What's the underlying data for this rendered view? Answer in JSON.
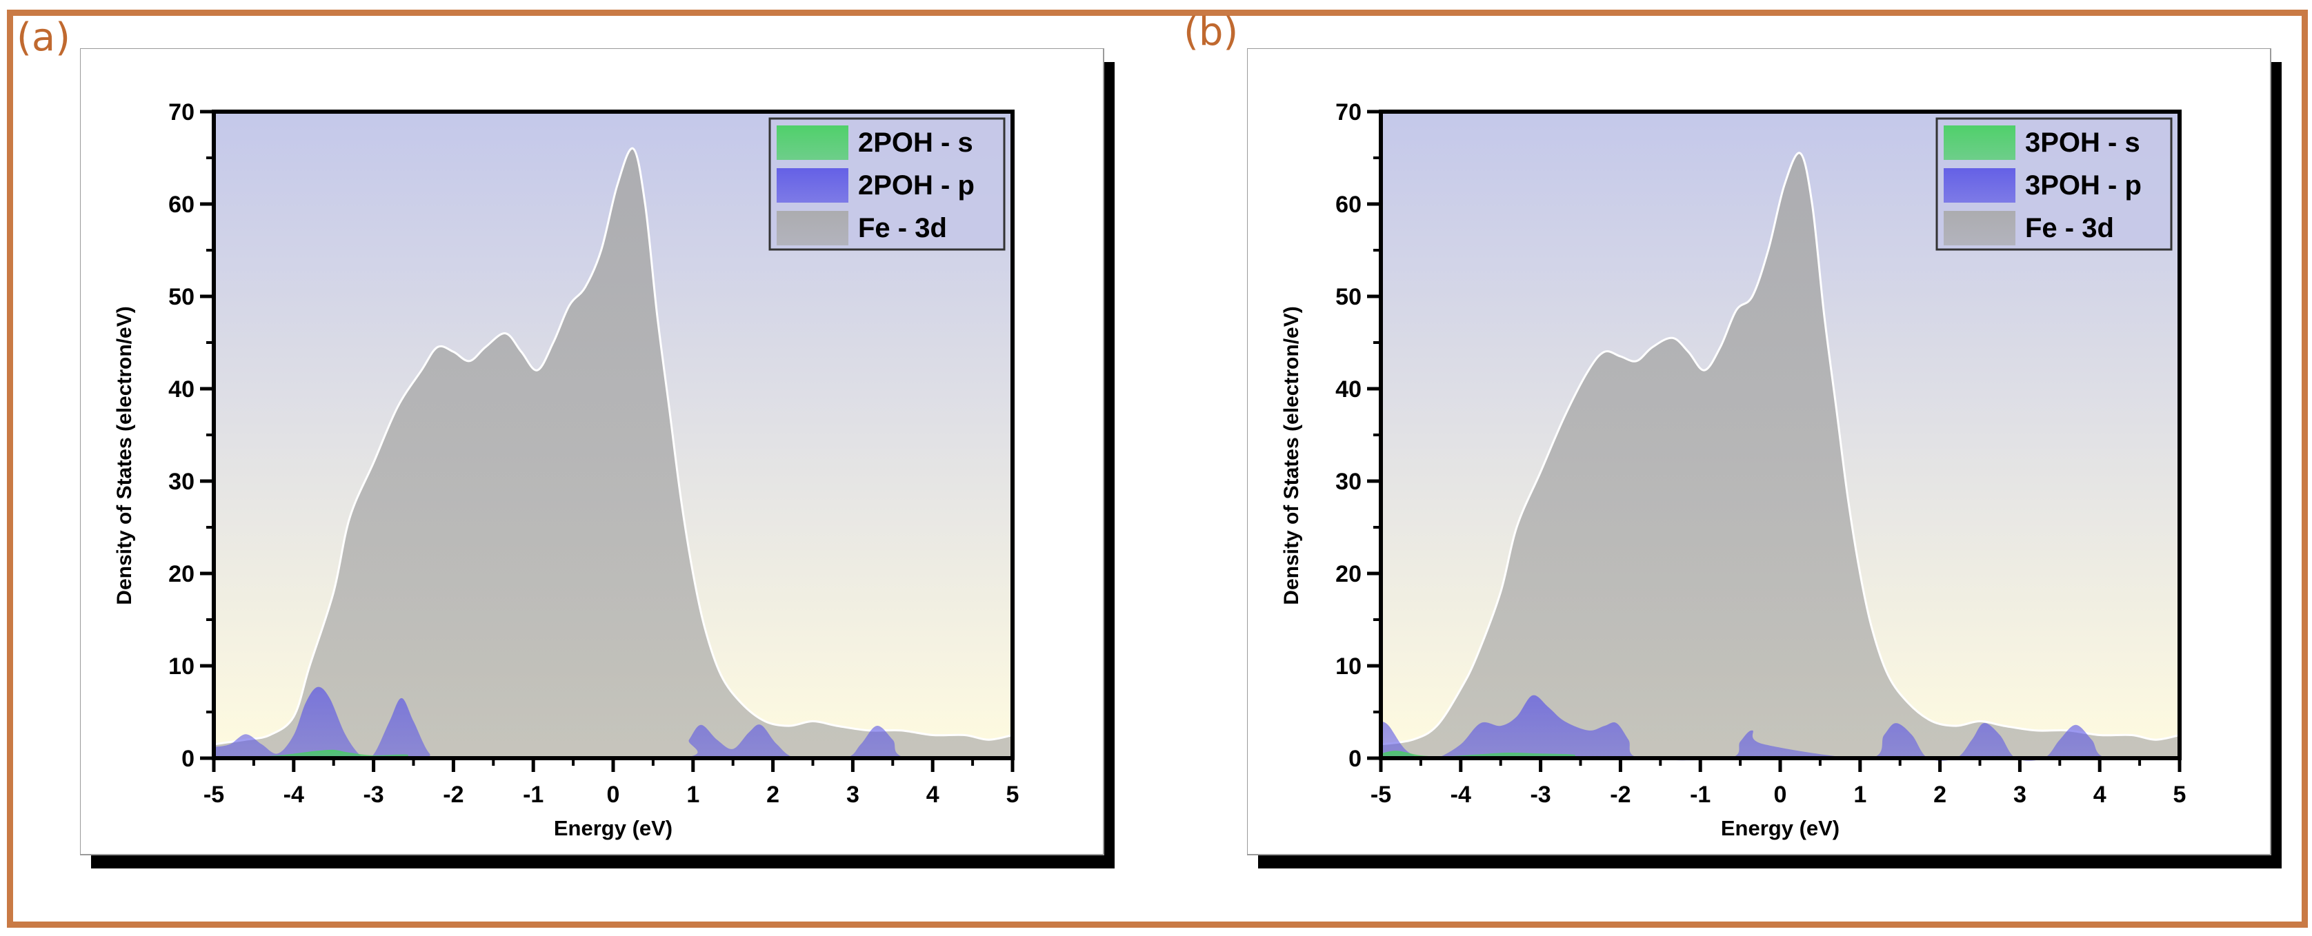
{
  "colors": {
    "frame": "#c97a45",
    "panel_letter": "#c0692f",
    "s_fill": "#43d15d",
    "p_fill": "#5a55e6",
    "d_fill": "#a9a9a9",
    "bg_top": "#c4c8ea",
    "bg_bottom": "#fffbe0"
  },
  "chart_data": [
    {
      "type": "area",
      "panel_label": "(a)",
      "title": "",
      "xlabel": "Energy (eV)",
      "ylabel": "Density of States (electron/eV)",
      "xlim": [
        -5,
        5
      ],
      "ylim": [
        0,
        70
      ],
      "xticks": [
        "-5",
        "-4",
        "-3",
        "-2",
        "-1",
        "0",
        "1",
        "2",
        "3",
        "4",
        "5"
      ],
      "yticks": [
        "0",
        "10",
        "20",
        "30",
        "40",
        "50",
        "60",
        "70"
      ],
      "legend_position": "top-right",
      "series": [
        {
          "name": "2POH - s",
          "x": [
            -5,
            -4.6,
            -4.2,
            -3.9,
            -3.7,
            -3.5,
            -3.3,
            -3.0,
            -2.6,
            -2.3,
            0,
            1,
            2,
            3,
            4,
            5
          ],
          "values": [
            0,
            0.1,
            0.3,
            0.6,
            0.8,
            0.9,
            0.6,
            0.3,
            0.4,
            0.1,
            0,
            0.1,
            0.1,
            0.1,
            0,
            0
          ]
        },
        {
          "name": "2POH - p",
          "x": [
            -5,
            -4.8,
            -4.6,
            -4.4,
            -4.2,
            -4.0,
            -3.85,
            -3.7,
            -3.55,
            -3.35,
            -3.15,
            -3.0,
            -2.8,
            -2.65,
            -2.5,
            -2.3,
            -2.1,
            0.8,
            0.95,
            1.1,
            1.3,
            1.5,
            1.7,
            1.85,
            2.05,
            2.3,
            2.9,
            3.1,
            3.3,
            3.5,
            3.7,
            5
          ],
          "values": [
            1.2,
            1.5,
            2.6,
            1.5,
            0.5,
            2.5,
            6.0,
            7.7,
            6.5,
            2.5,
            0.2,
            0.4,
            4.0,
            6.5,
            4.0,
            0.5,
            0,
            0,
            2.0,
            3.6,
            2.0,
            1.0,
            2.8,
            3.6,
            1.5,
            0,
            0,
            1.5,
            3.5,
            2.0,
            0,
            0
          ]
        },
        {
          "name": "Fe - 3d",
          "x": [
            -5,
            -4.6,
            -4.3,
            -4.0,
            -3.8,
            -3.5,
            -3.3,
            -3.0,
            -2.7,
            -2.4,
            -2.2,
            -2.0,
            -1.8,
            -1.6,
            -1.35,
            -1.15,
            -0.95,
            -0.75,
            -0.55,
            -0.35,
            -0.15,
            0.05,
            0.25,
            0.4,
            0.55,
            0.7,
            0.85,
            1.0,
            1.15,
            1.35,
            1.6,
            1.9,
            2.2,
            2.5,
            2.8,
            3.2,
            3.6,
            4.0,
            4.4,
            4.7,
            5.0
          ],
          "values": [
            1.5,
            2.0,
            2.5,
            4.5,
            10,
            18,
            26,
            32,
            38,
            42,
            44.5,
            44,
            43,
            44.5,
            46,
            44,
            42,
            45,
            49,
            51,
            55,
            62,
            66,
            60,
            48,
            38,
            28,
            20,
            14,
            9,
            6,
            4,
            3.5,
            4,
            3.5,
            3,
            3,
            2.5,
            2.5,
            2,
            2.5
          ]
        }
      ]
    },
    {
      "type": "area",
      "panel_label": "(b)",
      "title": "",
      "xlabel": "Energy (eV)",
      "ylabel": "Density of States (electron/eV)",
      "xlim": [
        -5,
        5
      ],
      "ylim": [
        0,
        70
      ],
      "xticks": [
        "-5",
        "-4",
        "-3",
        "-2",
        "-1",
        "0",
        "1",
        "2",
        "3",
        "4",
        "5"
      ],
      "yticks": [
        "0",
        "10",
        "20",
        "30",
        "40",
        "50",
        "60",
        "70"
      ],
      "legend_position": "top-right",
      "series": [
        {
          "name": "3POH - s",
          "x": [
            -5,
            -4.8,
            -4.5,
            -4.2,
            -3.8,
            -3.4,
            -3.0,
            -2.6,
            -2.3,
            0,
            1,
            2,
            3,
            4,
            5
          ],
          "values": [
            0.5,
            0.8,
            0.3,
            0.2,
            0.4,
            0.6,
            0.5,
            0.4,
            0.1,
            0,
            0.1,
            0.1,
            0.1,
            0,
            0
          ]
        },
        {
          "name": "3POH - p",
          "x": [
            -5,
            -4.9,
            -4.7,
            -4.5,
            -4.3,
            -4.0,
            -3.75,
            -3.5,
            -3.3,
            -3.1,
            -2.9,
            -2.7,
            -2.4,
            -2.2,
            -2.05,
            -1.9,
            -1.75,
            -0.65,
            -0.5,
            -0.35,
            -0.2,
            1.1,
            1.3,
            1.45,
            1.65,
            1.85,
            2.2,
            2.4,
            2.55,
            2.75,
            2.95,
            3.3,
            3.5,
            3.7,
            3.9,
            4.1,
            5
          ],
          "values": [
            4.0,
            3.5,
            1.0,
            0,
            0,
            1.5,
            3.8,
            3.5,
            4.5,
            6.8,
            5.5,
            4.0,
            3.0,
            3.5,
            3.8,
            2.0,
            0,
            0,
            1.8,
            3.0,
            1.5,
            0,
            2.5,
            3.8,
            2.5,
            0,
            0,
            2.0,
            3.8,
            2.5,
            0,
            0,
            2.0,
            3.6,
            2.0,
            0,
            0
          ]
        },
        {
          "name": "Fe - 3d",
          "x": [
            -5,
            -4.6,
            -4.3,
            -4.0,
            -3.8,
            -3.5,
            -3.3,
            -3.0,
            -2.7,
            -2.4,
            -2.2,
            -2.0,
            -1.8,
            -1.6,
            -1.35,
            -1.15,
            -0.95,
            -0.75,
            -0.55,
            -0.35,
            -0.15,
            0.05,
            0.25,
            0.4,
            0.55,
            0.7,
            0.85,
            1.0,
            1.15,
            1.35,
            1.6,
            1.9,
            2.2,
            2.5,
            2.8,
            3.2,
            3.6,
            4.0,
            4.4,
            4.7,
            5.0
          ],
          "values": [
            1.5,
            2.0,
            3.5,
            7.5,
            11,
            18,
            25,
            31,
            37,
            42,
            44,
            43.5,
            43,
            44.5,
            45.5,
            44,
            42,
            44.5,
            48.5,
            50,
            55,
            62,
            65.5,
            60,
            48,
            38,
            28,
            20,
            14,
            9,
            6,
            4,
            3.5,
            4,
            3.5,
            3,
            3,
            2.5,
            2.5,
            2,
            2.5
          ]
        }
      ]
    }
  ]
}
